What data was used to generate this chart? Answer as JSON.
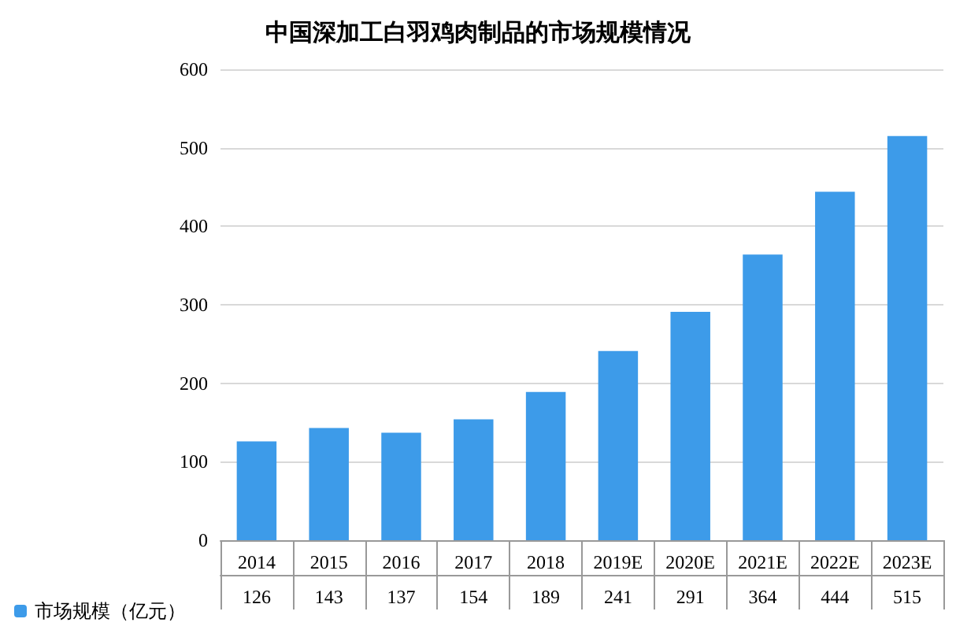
{
  "chart_data": {
    "type": "bar",
    "title": "中国深加工白羽鸡肉制品的市场规模情况",
    "categories": [
      "2014",
      "2015",
      "2016",
      "2017",
      "2018",
      "2019E",
      "2020E",
      "2021E",
      "2022E",
      "2023E"
    ],
    "series": [
      {
        "name": "市场规模（亿元）",
        "color": "#3d9be9",
        "values": [
          126,
          143,
          137,
          154,
          189,
          241,
          291,
          364,
          444,
          515
        ]
      }
    ],
    "ylim": [
      0,
      600
    ],
    "yticks": [
      0,
      100,
      200,
      300,
      400,
      500,
      600
    ],
    "grid": "y",
    "legend": "bottom left",
    "data_labels": true
  }
}
